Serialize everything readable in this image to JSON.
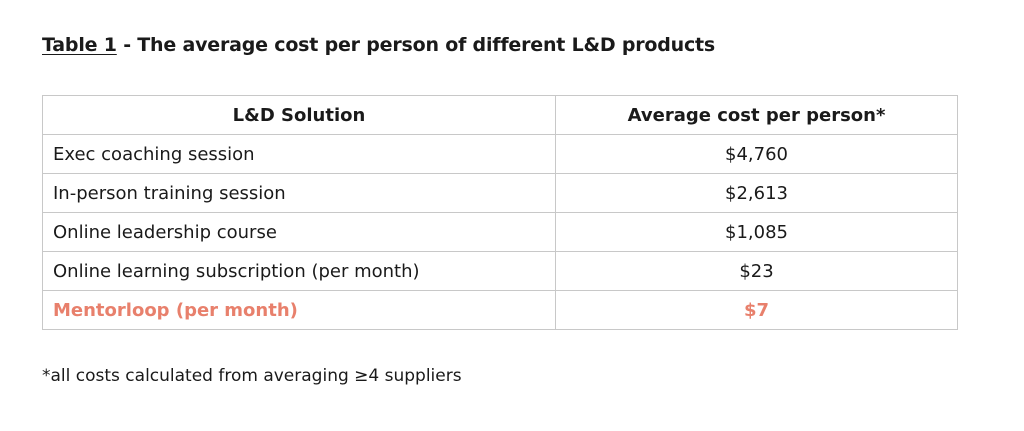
{
  "title": {
    "lead": "Table 1",
    "rest": " - The average cost per person of different L&D products"
  },
  "table": {
    "headers": [
      "L&D Solution",
      "Average cost per person*"
    ],
    "rows": [
      {
        "solution": "Exec coaching session",
        "cost": "$4,760"
      },
      {
        "solution": "In-person training session",
        "cost": "$2,613"
      },
      {
        "solution": "Online leadership course",
        "cost": "$1,085"
      },
      {
        "solution": "Online learning subscription (per month)",
        "cost": "$23"
      },
      {
        "solution": "Mentorloop (per month)",
        "cost": "$7",
        "highlight": true
      }
    ]
  },
  "footnote": "*all costs calculated from averaging ≥4 suppliers",
  "colors": {
    "highlight": "#e8806c",
    "border": "#c8c8c8",
    "text": "#1a1a1a"
  }
}
